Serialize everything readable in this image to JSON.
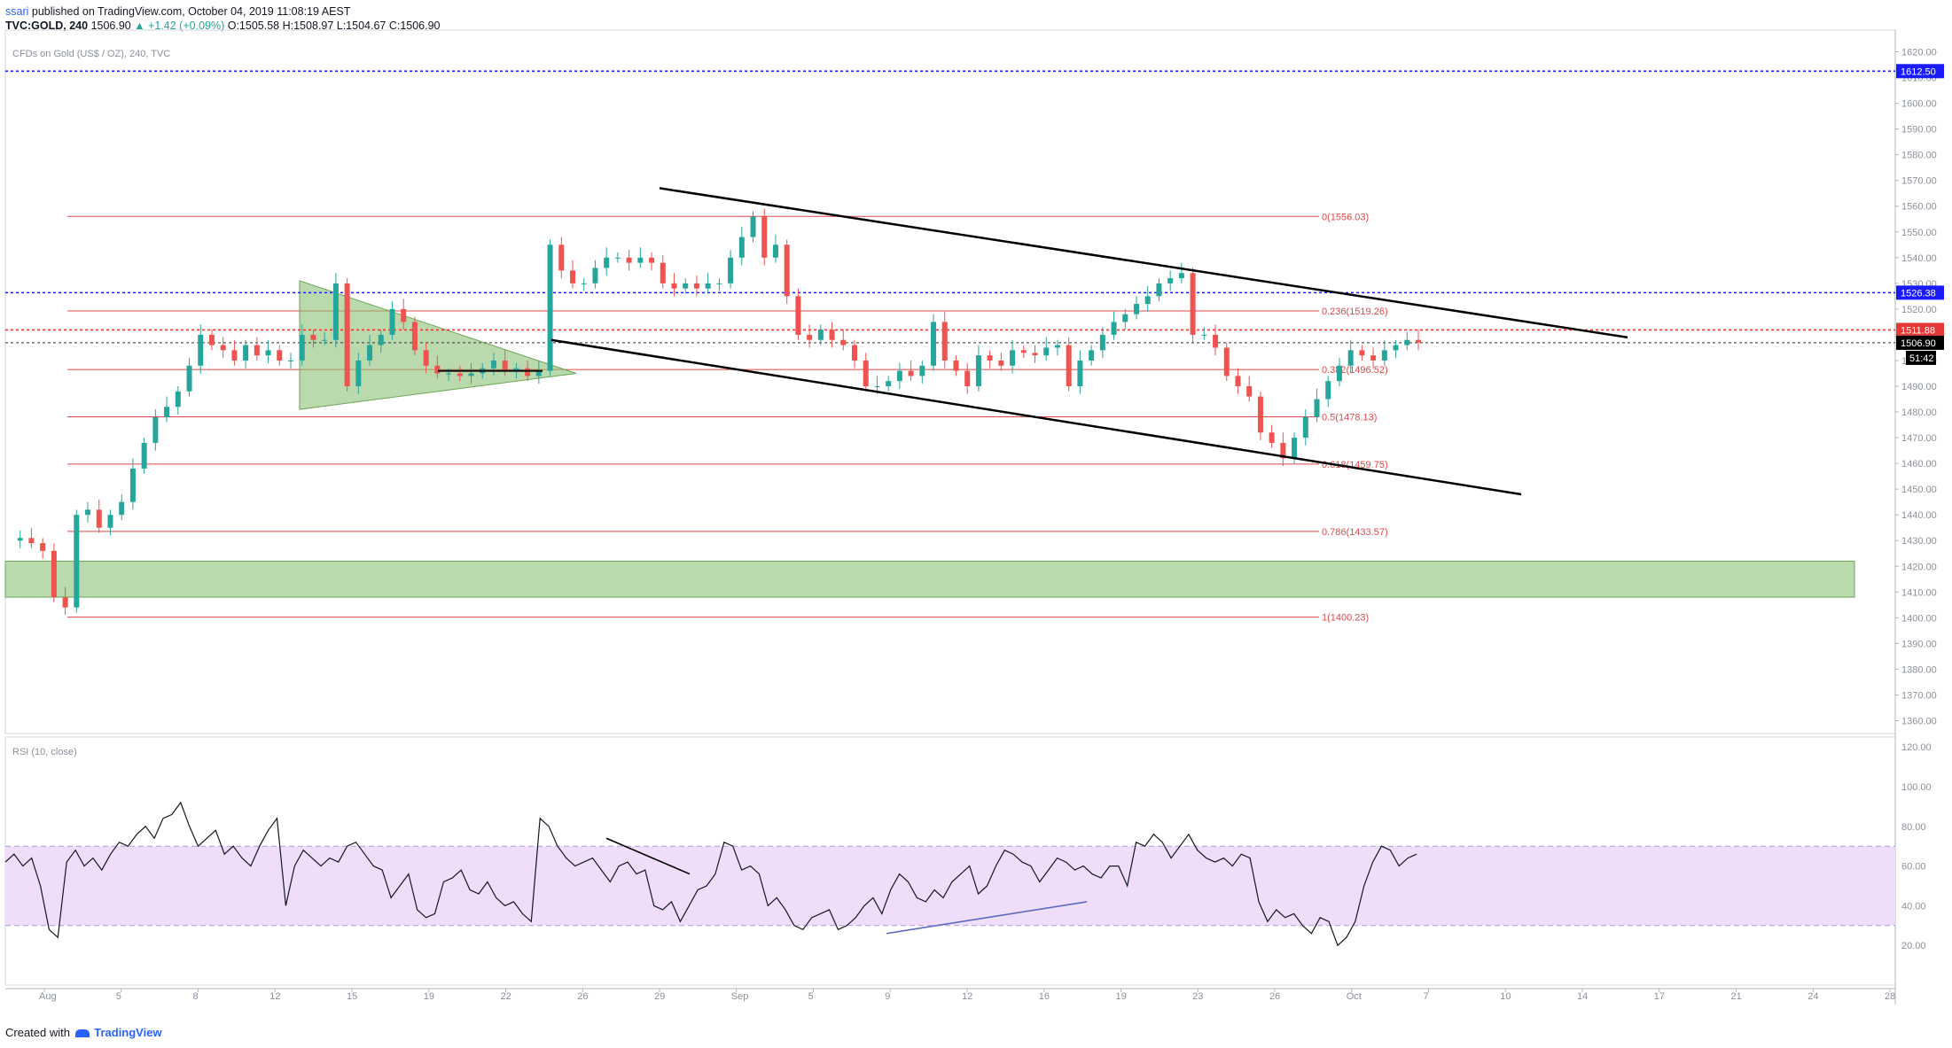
{
  "header": {
    "user": "ssari",
    "published": "published on TradingView.com, October 04, 2019 11:08:19 AEST",
    "symbol": "TVC:GOLD, 240",
    "last": "1506.90",
    "change": "▲ +1.42 (+0.09%)",
    "ohlc": "O:1505.58 H:1508.97 L:1504.67 C:1506.90"
  },
  "footer": {
    "created_with": "Created with",
    "brand": "TradingView"
  },
  "colors": {
    "bull": "#26a69a",
    "bear": "#ef5350",
    "fib": "#e04848",
    "level": "#1a1aff",
    "zone": "#8cc277",
    "triangle": "#8cc277",
    "rsi_band": "#f0ddfa",
    "trend": "#000000"
  },
  "chart_data": [
    {
      "type": "candlestick",
      "legend": "CFDs on Gold (US$ / OZ), 240, TVC",
      "ylim": [
        1355,
        1625
      ],
      "y_ticks": [
        1360,
        1370,
        1380,
        1390,
        1400,
        1410,
        1420,
        1430,
        1440,
        1450,
        1460,
        1470,
        1480,
        1490,
        1500,
        1510,
        1520,
        1530,
        1540,
        1550,
        1560,
        1570,
        1580,
        1590,
        1600,
        1610,
        1620
      ],
      "x_ticks": [
        "Aug",
        "5",
        "8",
        "12",
        "15",
        "19",
        "22",
        "26",
        "29",
        "Sep",
        "5",
        "9",
        "12",
        "16",
        "19",
        "23",
        "26",
        "Oct",
        "7",
        "10",
        "14",
        "17",
        "21",
        "24",
        "28"
      ],
      "price_path_x": [
        0,
        2,
        4,
        6,
        8,
        10,
        12,
        14,
        16,
        18,
        20,
        22,
        24,
        26,
        28,
        30,
        32,
        34,
        36,
        38,
        40,
        42,
        44,
        46,
        48,
        50,
        52,
        54,
        56,
        58,
        60,
        62,
        64,
        66,
        68,
        70,
        72,
        74,
        76,
        78,
        80,
        82,
        84,
        86,
        88,
        90,
        92,
        94,
        96,
        98,
        100,
        102,
        104,
        106,
        108,
        110,
        112,
        114,
        116,
        118,
        120,
        122,
        124,
        126,
        128,
        130,
        132,
        134,
        136,
        138,
        140,
        142,
        144,
        146,
        148,
        150,
        152,
        154,
        156,
        158,
        160,
        162,
        164,
        166,
        168,
        170,
        172,
        174,
        176,
        178,
        180,
        182,
        184,
        186,
        188,
        190,
        192,
        194,
        196,
        198,
        200,
        202,
        204,
        206,
        208,
        210,
        212,
        214,
        216,
        218
      ],
      "price_path_y": [
        1430,
        1431,
        1429,
        1426,
        1408,
        1404,
        1440,
        1442,
        1435,
        1440,
        1445,
        1458,
        1468,
        1478,
        1482,
        1488,
        1498,
        1510,
        1506,
        1504,
        1500,
        1506,
        1502,
        1504,
        1500,
        1500,
        1510,
        1508,
        1508,
        1530,
        1490,
        1500,
        1506,
        1510,
        1520,
        1515,
        1504,
        1498,
        1495,
        1495,
        1494,
        1495,
        1497,
        1500,
        1496,
        1497,
        1494,
        1496,
        1545,
        1535,
        1530,
        1530,
        1536,
        1540,
        1540,
        1538,
        1540,
        1538,
        1530,
        1528,
        1530,
        1528,
        1530,
        1530,
        1540,
        1548,
        1556,
        1540,
        1545,
        1525,
        1510,
        1508,
        1512,
        1508,
        1506,
        1500,
        1490,
        1490,
        1492,
        1496,
        1494,
        1498,
        1515,
        1500,
        1496,
        1490,
        1502,
        1500,
        1498,
        1504,
        1503,
        1502,
        1505,
        1506,
        1490,
        1500,
        1504,
        1510,
        1515,
        1518,
        1522,
        1525,
        1530,
        1532,
        1534,
        1510,
        1510,
        1505,
        1494,
        1490
      ],
      "price_path_tail_x": [
        220,
        222,
        224,
        226,
        228,
        230,
        232,
        234,
        236,
        238,
        240,
        242,
        244,
        246,
        248,
        250
      ],
      "price_path_tail_y": [
        1486,
        1472,
        1468,
        1462,
        1470,
        1478,
        1485,
        1492,
        1498,
        1504,
        1502,
        1500,
        1504,
        1506,
        1508,
        1507
      ],
      "horizontal_levels": [
        {
          "value": 1612.5,
          "label": "1612.50",
          "style": "dotted",
          "color": "#1a1aff"
        },
        {
          "value": 1526.38,
          "label": "1526.38",
          "style": "dotted",
          "color": "#1a1aff"
        },
        {
          "value": 1511.88,
          "label": "1511.88",
          "style": "dotted",
          "color": "#e53935"
        },
        {
          "value": 1506.9,
          "label": "1506.90",
          "style": "dotted",
          "color": "#333333"
        }
      ],
      "countdown": "51:42",
      "fibonacci": [
        {
          "label": "0(1556.03)",
          "value": 1556.03
        },
        {
          "label": "0.236(1519.26)",
          "value": 1519.26
        },
        {
          "label": "0.382(1496.52)",
          "value": 1496.52
        },
        {
          "label": "0.5(1478.13)",
          "value": 1478.13
        },
        {
          "label": "0.618(1459.75)",
          "value": 1459.75
        },
        {
          "label": "0.786(1433.57)",
          "value": 1433.57
        },
        {
          "label": "1(1400.23)",
          "value": 1400.23
        }
      ],
      "support_zone": [
        1408,
        1422
      ],
      "channel_upper": [
        [
          1567,
          0.75
        ],
        [
          1509,
          0.82
        ]
      ],
      "channel_lower": [
        [
          1508,
          0.28
        ],
        [
          1448,
          0.76
        ]
      ]
    },
    {
      "type": "line",
      "legend": "RSI (10, close)",
      "ylim": [
        0,
        125
      ],
      "y_ticks": [
        "20.00",
        "40.00",
        "60.00",
        "80.00",
        "100.00",
        "120.00"
      ],
      "band": [
        30,
        70
      ],
      "values": [
        62,
        66,
        60,
        64,
        50,
        28,
        24,
        62,
        68,
        60,
        64,
        58,
        66,
        72,
        70,
        76,
        80,
        74,
        84,
        86,
        92,
        80,
        70,
        74,
        78,
        66,
        70,
        64,
        60,
        70,
        78,
        84,
        40,
        60,
        68,
        64,
        60,
        64,
        62,
        70,
        72,
        66,
        60,
        58,
        44,
        50,
        56,
        38,
        34,
        36,
        52,
        54,
        58,
        48,
        46,
        52,
        44,
        40,
        42,
        36,
        32,
        84,
        80,
        70,
        64,
        60,
        62,
        64,
        58,
        52,
        60,
        62,
        56,
        58,
        40,
        38,
        42,
        32,
        40,
        48,
        50,
        56,
        72,
        70,
        58,
        60,
        56,
        40,
        44,
        38,
        30,
        28,
        34,
        36,
        38,
        28,
        30,
        34,
        40,
        44,
        36,
        48,
        56,
        52,
        44,
        42,
        48,
        44,
        52,
        56,
        60,
        46,
        50,
        60,
        68,
        66,
        62,
        60,
        52,
        58,
        64,
        62,
        58,
        60,
        56,
        54,
        60,
        60,
        50,
        72,
        70,
        76,
        72,
        64,
        70,
        76,
        68,
        64,
        62,
        64,
        60,
        66,
        64,
        42,
        32,
        38,
        34,
        36,
        30,
        26,
        34,
        32,
        20,
        24,
        32,
        50,
        62,
        70,
        68,
        60,
        64,
        66
      ]
    }
  ]
}
